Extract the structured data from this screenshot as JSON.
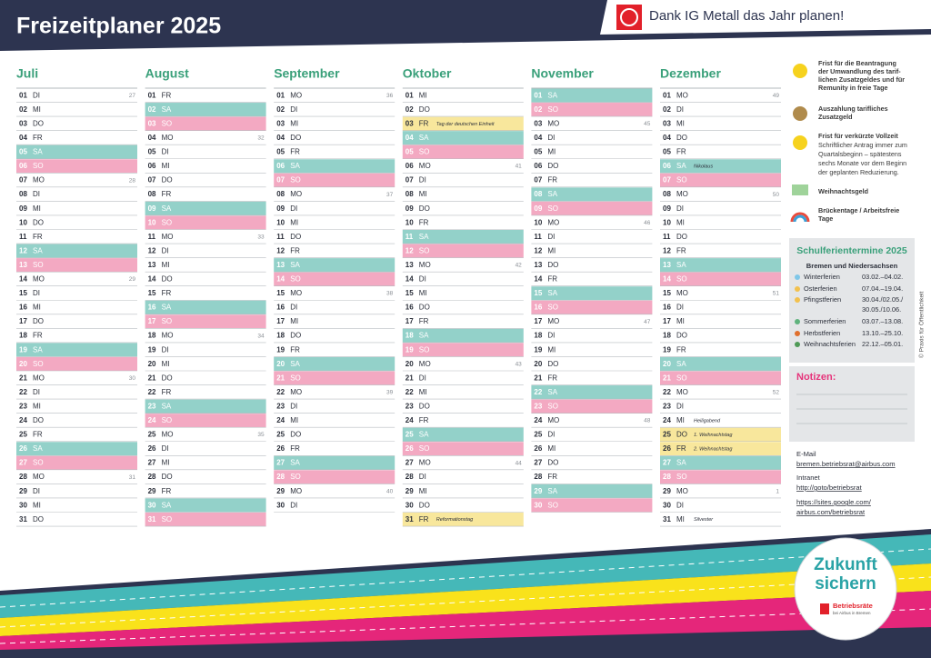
{
  "header": {
    "title": "Freizeitplaner 2025",
    "slogan": "Dank IG Metall das Jahr planen!"
  },
  "months": [
    {
      "name": "Juli",
      "days": [
        [
          "01",
          "DI",
          "27"
        ],
        [
          "02",
          "MI"
        ],
        [
          "03",
          "DO"
        ],
        [
          "04",
          "FR"
        ],
        [
          "05",
          "SA"
        ],
        [
          "06",
          "SO"
        ],
        [
          "07",
          "MO",
          "28"
        ],
        [
          "08",
          "DI"
        ],
        [
          "09",
          "MI"
        ],
        [
          "10",
          "DO"
        ],
        [
          "11",
          "FR"
        ],
        [
          "12",
          "SA"
        ],
        [
          "13",
          "SO"
        ],
        [
          "14",
          "MO",
          "29"
        ],
        [
          "15",
          "DI"
        ],
        [
          "16",
          "MI"
        ],
        [
          "17",
          "DO"
        ],
        [
          "18",
          "FR"
        ],
        [
          "19",
          "SA"
        ],
        [
          "20",
          "SO"
        ],
        [
          "21",
          "MO",
          "30"
        ],
        [
          "22",
          "DI"
        ],
        [
          "23",
          "MI"
        ],
        [
          "24",
          "DO"
        ],
        [
          "25",
          "FR"
        ],
        [
          "26",
          "SA"
        ],
        [
          "27",
          "SO"
        ],
        [
          "28",
          "MO",
          "31"
        ],
        [
          "29",
          "DI"
        ],
        [
          "30",
          "MI"
        ],
        [
          "31",
          "DO"
        ]
      ]
    },
    {
      "name": "August",
      "days": [
        [
          "01",
          "FR"
        ],
        [
          "02",
          "SA"
        ],
        [
          "03",
          "SO"
        ],
        [
          "04",
          "MO",
          "32"
        ],
        [
          "05",
          "DI"
        ],
        [
          "06",
          "MI"
        ],
        [
          "07",
          "DO"
        ],
        [
          "08",
          "FR"
        ],
        [
          "09",
          "SA"
        ],
        [
          "10",
          "SO"
        ],
        [
          "11",
          "MO",
          "33"
        ],
        [
          "12",
          "DI"
        ],
        [
          "13",
          "MI"
        ],
        [
          "14",
          "DO"
        ],
        [
          "15",
          "FR"
        ],
        [
          "16",
          "SA"
        ],
        [
          "17",
          "SO"
        ],
        [
          "18",
          "MO",
          "34"
        ],
        [
          "19",
          "DI"
        ],
        [
          "20",
          "MI"
        ],
        [
          "21",
          "DO"
        ],
        [
          "22",
          "FR"
        ],
        [
          "23",
          "SA"
        ],
        [
          "24",
          "SO"
        ],
        [
          "25",
          "MO",
          "35"
        ],
        [
          "26",
          "DI"
        ],
        [
          "27",
          "MI"
        ],
        [
          "28",
          "DO"
        ],
        [
          "29",
          "FR"
        ],
        [
          "30",
          "SA"
        ],
        [
          "31",
          "SO"
        ]
      ]
    },
    {
      "name": "September",
      "days": [
        [
          "01",
          "MO",
          "36"
        ],
        [
          "02",
          "DI"
        ],
        [
          "03",
          "MI"
        ],
        [
          "04",
          "DO"
        ],
        [
          "05",
          "FR"
        ],
        [
          "06",
          "SA"
        ],
        [
          "07",
          "SO"
        ],
        [
          "08",
          "MO",
          "37"
        ],
        [
          "09",
          "DI"
        ],
        [
          "10",
          "MI"
        ],
        [
          "11",
          "DO"
        ],
        [
          "12",
          "FR"
        ],
        [
          "13",
          "SA"
        ],
        [
          "14",
          "SO"
        ],
        [
          "15",
          "MO",
          "38"
        ],
        [
          "16",
          "DI"
        ],
        [
          "17",
          "MI"
        ],
        [
          "18",
          "DO"
        ],
        [
          "19",
          "FR"
        ],
        [
          "20",
          "SA"
        ],
        [
          "21",
          "SO"
        ],
        [
          "22",
          "MO",
          "39"
        ],
        [
          "23",
          "DI"
        ],
        [
          "24",
          "MI"
        ],
        [
          "25",
          "DO"
        ],
        [
          "26",
          "FR"
        ],
        [
          "27",
          "SA"
        ],
        [
          "28",
          "SO"
        ],
        [
          "29",
          "MO",
          "40"
        ],
        [
          "30",
          "DI"
        ]
      ]
    },
    {
      "name": "Oktober",
      "days": [
        [
          "01",
          "MI"
        ],
        [
          "02",
          "DO"
        ],
        {
          "d": "03",
          "w": "FR",
          "note": "Tag der deutschen Einheit",
          "hol": true
        },
        [
          "04",
          "SA"
        ],
        [
          "05",
          "SO"
        ],
        [
          "06",
          "MO",
          "41"
        ],
        [
          "07",
          "DI"
        ],
        [
          "08",
          "MI"
        ],
        [
          "09",
          "DO"
        ],
        [
          "10",
          "FR"
        ],
        [
          "11",
          "SA"
        ],
        [
          "12",
          "SO"
        ],
        [
          "13",
          "MO",
          "42"
        ],
        [
          "14",
          "DI"
        ],
        [
          "15",
          "MI"
        ],
        [
          "16",
          "DO"
        ],
        [
          "17",
          "FR"
        ],
        [
          "18",
          "SA"
        ],
        [
          "19",
          "SO"
        ],
        [
          "20",
          "MO",
          "43"
        ],
        [
          "21",
          "DI"
        ],
        [
          "22",
          "MI"
        ],
        [
          "23",
          "DO"
        ],
        [
          "24",
          "FR"
        ],
        [
          "25",
          "SA"
        ],
        [
          "26",
          "SO"
        ],
        [
          "27",
          "MO",
          "44"
        ],
        [
          "28",
          "DI"
        ],
        [
          "29",
          "MI"
        ],
        [
          "30",
          "DO"
        ],
        {
          "d": "31",
          "w": "FR",
          "note": "Reformationstag",
          "hol": true
        }
      ]
    },
    {
      "name": "November",
      "days": [
        [
          "01",
          "SA"
        ],
        [
          "02",
          "SO"
        ],
        [
          "03",
          "MO",
          "45"
        ],
        [
          "04",
          "DI"
        ],
        [
          "05",
          "MI"
        ],
        [
          "06",
          "DO"
        ],
        [
          "07",
          "FR"
        ],
        [
          "08",
          "SA"
        ],
        [
          "09",
          "SO"
        ],
        [
          "10",
          "MO",
          "46"
        ],
        [
          "11",
          "DI"
        ],
        [
          "12",
          "MI"
        ],
        [
          "13",
          "DO"
        ],
        [
          "14",
          "FR"
        ],
        [
          "15",
          "SA"
        ],
        [
          "16",
          "SO"
        ],
        [
          "17",
          "MO",
          "47"
        ],
        [
          "18",
          "DI"
        ],
        [
          "19",
          "MI"
        ],
        [
          "20",
          "DO"
        ],
        [
          "21",
          "FR"
        ],
        [
          "22",
          "SA"
        ],
        [
          "23",
          "SO"
        ],
        [
          "24",
          "MO",
          "48"
        ],
        [
          "25",
          "DI"
        ],
        [
          "26",
          "MI"
        ],
        [
          "27",
          "DO"
        ],
        [
          "28",
          "FR"
        ],
        [
          "29",
          "SA"
        ],
        [
          "30",
          "SO"
        ]
      ]
    },
    {
      "name": "Dezember",
      "days": [
        [
          "01",
          "MO",
          "49"
        ],
        [
          "02",
          "DI"
        ],
        [
          "03",
          "MI"
        ],
        [
          "04",
          "DO"
        ],
        [
          "05",
          "FR"
        ],
        {
          "d": "06",
          "w": "SA",
          "note": "Nikolaus"
        },
        [
          "07",
          "SO"
        ],
        [
          "08",
          "MO",
          "50"
        ],
        [
          "09",
          "DI"
        ],
        [
          "10",
          "MI"
        ],
        [
          "11",
          "DO"
        ],
        [
          "12",
          "FR"
        ],
        [
          "13",
          "SA"
        ],
        [
          "14",
          "SO"
        ],
        [
          "15",
          "MO",
          "51"
        ],
        [
          "16",
          "DI"
        ],
        [
          "17",
          "MI"
        ],
        [
          "18",
          "DO"
        ],
        [
          "19",
          "FR"
        ],
        [
          "20",
          "SA"
        ],
        [
          "21",
          "SO"
        ],
        [
          "22",
          "MO",
          "52"
        ],
        [
          "23",
          "DI"
        ],
        {
          "d": "24",
          "w": "MI",
          "note": "Heiligabend"
        },
        {
          "d": "25",
          "w": "DO",
          "note": "1. Weihnachtstag",
          "hol": true
        },
        {
          "d": "26",
          "w": "FR",
          "note": "2. Weihnachtstag",
          "hol": true
        },
        [
          "27",
          "SA"
        ],
        [
          "28",
          "SO"
        ],
        [
          "29",
          "MO",
          "1"
        ],
        [
          "30",
          "DI"
        ],
        {
          "d": "31",
          "w": "MI",
          "note": "Silvester"
        }
      ]
    }
  ],
  "legend": [
    {
      "lines": [
        "Frist für die Beantragung",
        "der Umwandlung des tarif-",
        "lichen Zusatzgeldes und für",
        "Remunity in freie Tage"
      ]
    },
    {
      "lines": [
        "Auszahlung tarifliches",
        "Zusatzgeld"
      ]
    },
    {
      "lines": [
        "Frist für verkürzte Vollzeit",
        "Schriftlicher Antrag immer zum",
        "Quartalsbeginn – spätestens",
        "sechs Monate vor dem Beginn",
        "der geplanten Reduzierung."
      ]
    },
    {
      "lines": [
        "Weihnachtsgeld"
      ]
    },
    {
      "lines": [
        "Brückentage / Arbeitsfreie",
        "Tage"
      ]
    }
  ],
  "school_holidays": {
    "title": "Schulferientermine 2025",
    "region": "Bremen und Niedersachsen",
    "rows": [
      [
        "Winterferien",
        "03.02.–04.02."
      ],
      [
        "Osterferien",
        "07.04.–19.04."
      ],
      [
        "Pfingstferien",
        "30.04./02.05./",
        "30.05./10.06."
      ],
      [
        "Sommerferien",
        "03.07.–13.08."
      ],
      [
        "Herbstferien",
        "13.10.–25.10."
      ],
      [
        "Weihnachtsferien",
        "22.12.–05.01."
      ]
    ]
  },
  "notes": {
    "title": "Notizen:"
  },
  "contact": {
    "email_label": "E-Mail",
    "email": "bremen.betriebsrat@airbus.com",
    "intranet_label": "Intranet",
    "intranet": "http://goto/betriebsrat",
    "site_lines": [
      "https://sites.google.com/",
      "airbus.com/betriebsrat"
    ]
  },
  "copyright": "© Praxis für Öffentlichkeit",
  "badge": {
    "line1": "Zukunft",
    "line2": "sichern",
    "org": "Betriebsräte",
    "sub": "bei Airbus in Bremen"
  }
}
